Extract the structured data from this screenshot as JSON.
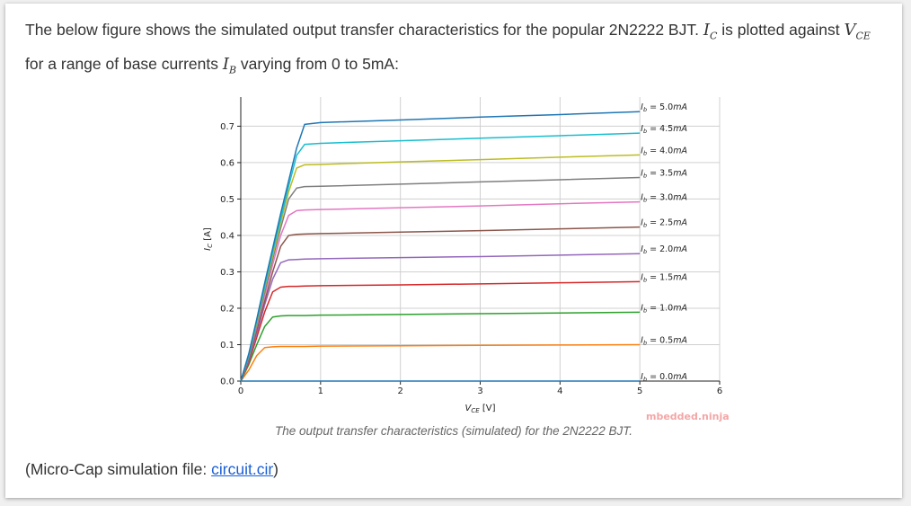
{
  "intro": {
    "part1": "The below figure shows the simulated output transfer characteristics for the popular 2N2222 BJT. ",
    "ic_var": "I",
    "ic_sub": "C",
    "part2": " is plotted against ",
    "vce_var": "V",
    "vce_sub": "CE",
    "part3": " for a range of base currents ",
    "ib_var": "I",
    "ib_sub": "B",
    "part4": " varying from 0 to 5mA:"
  },
  "caption": "The output transfer characteristics (simulated) for the 2N2222 BJT.",
  "watermark": "mbedded.ninja",
  "outro": {
    "prefix": "(Micro-Cap simulation file: ",
    "link_text": "circuit.cir",
    "suffix": ")"
  },
  "colors": {
    "text": "#333333",
    "link": "#1a5fd6",
    "watermark": "#f4a6a6"
  },
  "chart_data": {
    "type": "line",
    "xlabel": "V_CE [V]",
    "ylabel": "I_C [A]",
    "xlim": [
      0,
      6
    ],
    "ylim": [
      0,
      0.78
    ],
    "xticks": [
      0,
      1,
      2,
      3,
      4,
      5,
      6
    ],
    "yticks": [
      0.0,
      0.1,
      0.2,
      0.3,
      0.4,
      0.5,
      0.6,
      0.7
    ],
    "xtick_labels": [
      "0",
      "1",
      "2",
      "3",
      "4",
      "5",
      "6"
    ],
    "ytick_labels": [
      "0.0",
      "0.1",
      "0.2",
      "0.3",
      "0.4",
      "0.5",
      "0.6",
      "0.7"
    ],
    "grid": true,
    "x": [
      0.0,
      0.1,
      0.2,
      0.3,
      0.4,
      0.5,
      0.6,
      0.7,
      0.8,
      1.0,
      2.0,
      3.0,
      4.0,
      5.0
    ],
    "series": [
      {
        "name": "I_b = 0.0mA",
        "label": "I_b = 0.0mA",
        "color": "#1f77b4",
        "values": [
          0,
          0,
          0,
          0,
          0,
          0,
          0,
          0,
          0,
          0,
          0,
          0,
          0,
          0
        ]
      },
      {
        "name": "I_b = 0.5mA",
        "label": "I_b = 0.5mA",
        "color": "#ff7f0e",
        "values": [
          0,
          0.03,
          0.07,
          0.092,
          0.094,
          0.095,
          0.095,
          0.095,
          0.095,
          0.096,
          0.097,
          0.098,
          0.099,
          0.1
        ]
      },
      {
        "name": "I_b = 1.0mA",
        "label": "I_b = 1.0mA",
        "color": "#2ca02c",
        "values": [
          0,
          0.045,
          0.1,
          0.15,
          0.176,
          0.179,
          0.18,
          0.18,
          0.18,
          0.181,
          0.183,
          0.185,
          0.187,
          0.189
        ]
      },
      {
        "name": "I_b = 1.5mA",
        "label": "I_b = 1.5mA",
        "color": "#d62728",
        "values": [
          0,
          0.05,
          0.12,
          0.19,
          0.245,
          0.258,
          0.26,
          0.26,
          0.261,
          0.262,
          0.264,
          0.267,
          0.27,
          0.273
        ]
      },
      {
        "name": "I_b = 2.0mA",
        "label": "I_b = 2.0mA",
        "color": "#9467bd",
        "values": [
          0,
          0.055,
          0.13,
          0.21,
          0.28,
          0.325,
          0.333,
          0.334,
          0.335,
          0.336,
          0.339,
          0.342,
          0.346,
          0.35
        ]
      },
      {
        "name": "I_b = 2.5mA",
        "label": "I_b = 2.5mA",
        "color": "#8c564b",
        "values": [
          0,
          0.06,
          0.14,
          0.22,
          0.3,
          0.37,
          0.4,
          0.403,
          0.404,
          0.405,
          0.409,
          0.413,
          0.418,
          0.423
        ]
      },
      {
        "name": "I_b = 3.0mA",
        "label": "I_b = 3.0mA",
        "color": "#e377c2",
        "values": [
          0,
          0.065,
          0.15,
          0.235,
          0.32,
          0.4,
          0.455,
          0.468,
          0.47,
          0.471,
          0.476,
          0.481,
          0.487,
          0.492
        ]
      },
      {
        "name": "I_b = 3.5mA",
        "label": "I_b = 3.5mA",
        "color": "#7f7f7f",
        "values": [
          0,
          0.065,
          0.155,
          0.245,
          0.335,
          0.42,
          0.5,
          0.53,
          0.534,
          0.535,
          0.541,
          0.547,
          0.553,
          0.559
        ]
      },
      {
        "name": "I_b = 4.0mA",
        "label": "I_b = 4.0mA",
        "color": "#bcbd22",
        "values": [
          0,
          0.07,
          0.16,
          0.255,
          0.345,
          0.435,
          0.52,
          0.585,
          0.594,
          0.595,
          0.602,
          0.608,
          0.615,
          0.621
        ]
      },
      {
        "name": "I_b = 4.5mA",
        "label": "I_b = 4.5mA",
        "color": "#17becf",
        "values": [
          0,
          0.07,
          0.165,
          0.26,
          0.355,
          0.445,
          0.535,
          0.62,
          0.65,
          0.653,
          0.66,
          0.667,
          0.674,
          0.681
        ]
      },
      {
        "name": "I_b = 5.0mA",
        "label": "I_b = 5.0mA",
        "color": "#1f77b4",
        "values": [
          0,
          0.075,
          0.17,
          0.27,
          0.365,
          0.46,
          0.55,
          0.64,
          0.705,
          0.71,
          0.717,
          0.725,
          0.732,
          0.74
        ]
      }
    ]
  }
}
